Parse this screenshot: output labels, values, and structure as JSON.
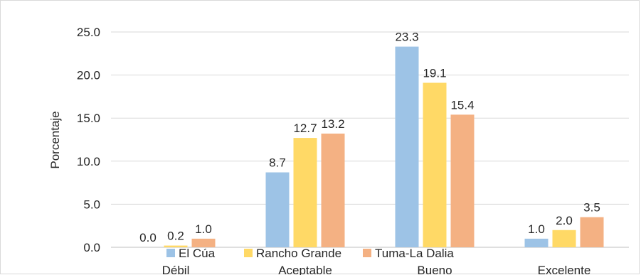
{
  "chart_data": {
    "type": "bar",
    "title": "",
    "xlabel": "",
    "ylabel": "Porcentaje",
    "ylim": [
      0,
      25
    ],
    "yticks": [
      "0.0",
      "5.0",
      "10.0",
      "15.0",
      "20.0",
      "25.0"
    ],
    "grid": true,
    "legend_position": "bottom",
    "categories": [
      "Débil",
      "Aceptable",
      "Bueno",
      "Excelente"
    ],
    "series": [
      {
        "name": "El Cúa",
        "color": "#9dc3e6",
        "values": [
          0.0,
          8.7,
          23.3,
          1.0
        ],
        "labels": [
          "0.0",
          "8.7",
          "23.3",
          "1.0"
        ]
      },
      {
        "name": "Rancho Grande",
        "color": "#ffd966",
        "values": [
          0.2,
          12.7,
          19.1,
          2.0
        ],
        "labels": [
          "0.2",
          "12.7",
          "19.1",
          "2.0"
        ]
      },
      {
        "name": "Tuma-La Dalia",
        "color": "#f4b183",
        "values": [
          1.0,
          13.2,
          15.4,
          3.5
        ],
        "labels": [
          "1.0",
          "13.2",
          "15.4",
          "3.5"
        ]
      }
    ]
  }
}
